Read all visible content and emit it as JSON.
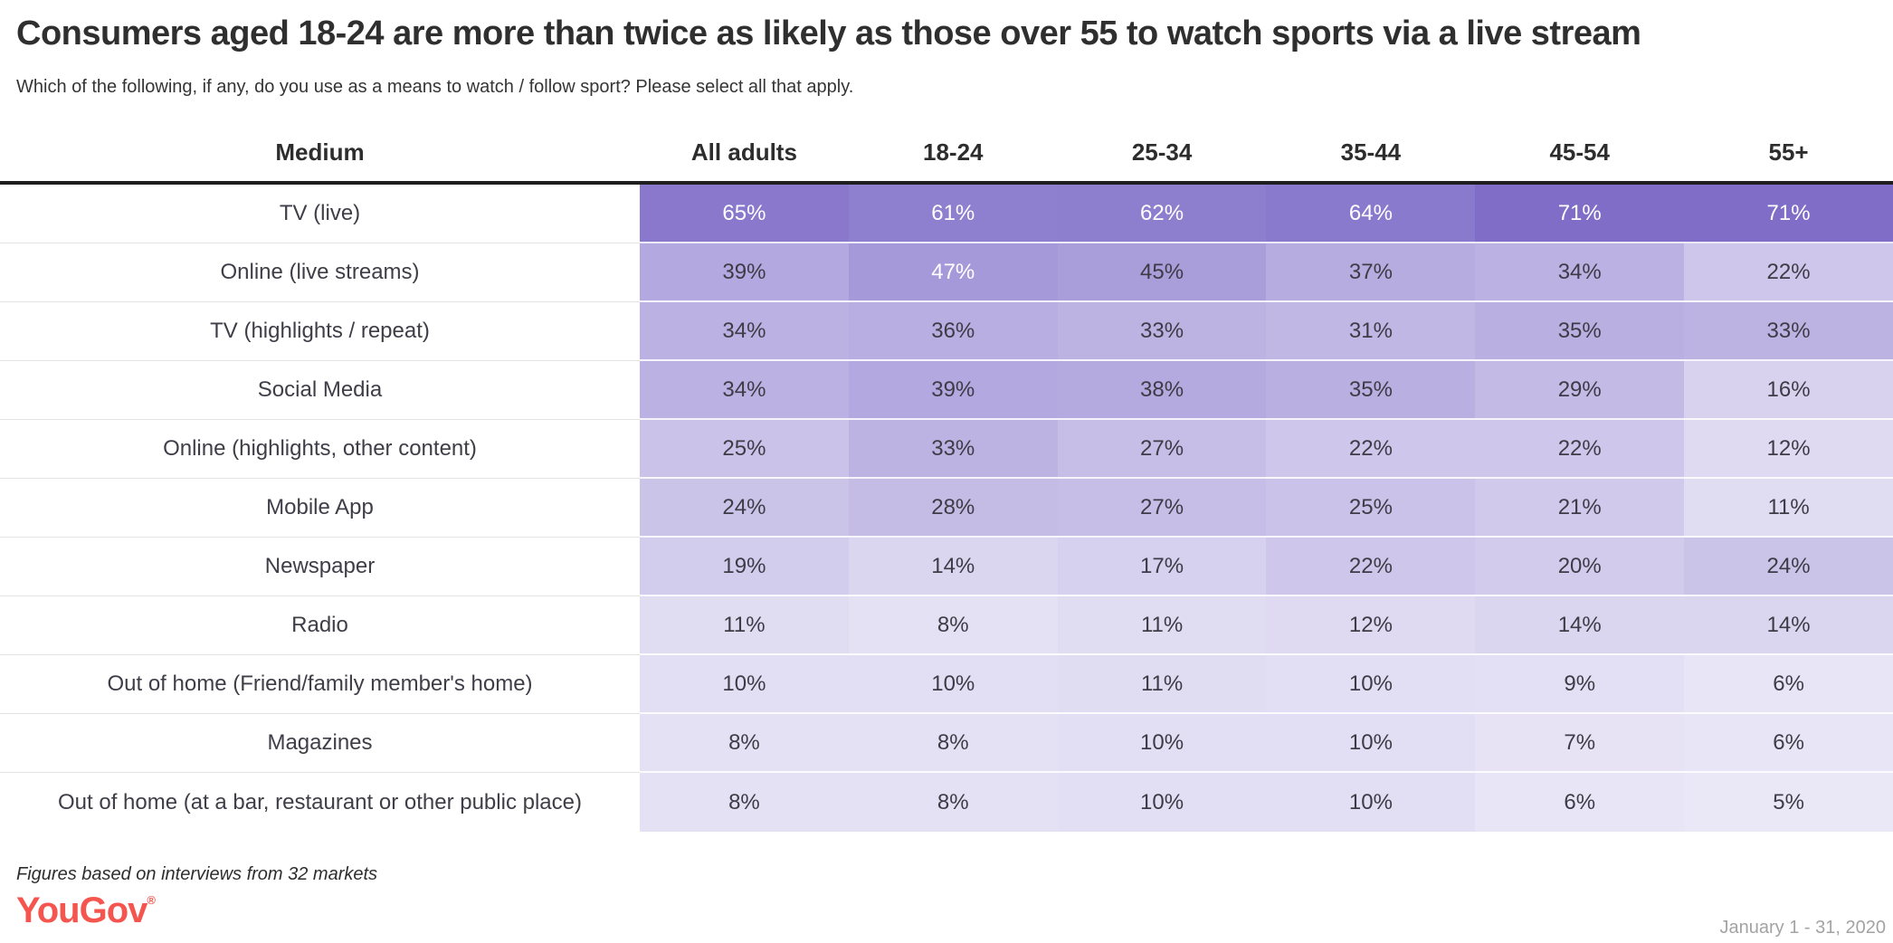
{
  "page": {
    "title": "Consumers aged 18-24 are more than twice as likely as those over 55 to watch sports via a live stream",
    "subtitle": "Which of the following, if any, do you use as a means to watch / follow sport? Please select all that apply."
  },
  "chart_data": {
    "type": "heatmap",
    "title": "Consumers aged 18-24 are more than twice as likely as those over 55 to watch sports via a live stream",
    "question": "Which of the following, if any, do you use as a means to watch / follow sport? Please select all that apply.",
    "row_header_label": "Medium",
    "columns": [
      "All adults",
      "18-24",
      "25-34",
      "35-44",
      "45-54",
      "55+"
    ],
    "rows": [
      {
        "label": "TV (live)",
        "values": [
          65,
          61,
          62,
          64,
          71,
          71
        ]
      },
      {
        "label": "Online (live streams)",
        "values": [
          39,
          47,
          45,
          37,
          34,
          22
        ]
      },
      {
        "label": "TV (highlights / repeat)",
        "values": [
          34,
          36,
          33,
          31,
          35,
          33
        ]
      },
      {
        "label": "Social Media",
        "values": [
          34,
          39,
          38,
          35,
          29,
          16
        ]
      },
      {
        "label": "Online (highlights, other content)",
        "values": [
          25,
          33,
          27,
          22,
          22,
          12
        ]
      },
      {
        "label": "Mobile App",
        "values": [
          24,
          28,
          27,
          25,
          21,
          11
        ]
      },
      {
        "label": "Newspaper",
        "values": [
          19,
          14,
          17,
          22,
          20,
          24
        ]
      },
      {
        "label": "Radio",
        "values": [
          11,
          8,
          11,
          12,
          14,
          14
        ]
      },
      {
        "label": "Out of home (Friend/family member's home)",
        "values": [
          10,
          10,
          11,
          10,
          9,
          6
        ]
      },
      {
        "label": "Magazines",
        "values": [
          8,
          8,
          10,
          10,
          7,
          6
        ]
      },
      {
        "label": "Out of home (at a bar, restaurant or other public place)",
        "values": [
          8,
          8,
          10,
          10,
          6,
          5
        ]
      }
    ],
    "value_unit": "%",
    "color_scale": {
      "min_value": 0,
      "max_value": 71,
      "min_color": "#f2f0fa",
      "max_color": "#7f6dc8"
    },
    "white_text_threshold": 47,
    "legend_position": "none",
    "grid": false
  },
  "footer": {
    "note": "Figures based on interviews from 32 markets",
    "brand": "YouGov",
    "registered_mark": "®",
    "date_range": "January 1 - 31, 2020"
  },
  "colors": {
    "title_text": "#2f2f2f",
    "header_divider": "#1f1f1f",
    "row_divider": "#e3e3e3",
    "brand_red": "#f4564f",
    "date_text": "#a3a3a3",
    "cell_text_dark": "#3d3c46",
    "cell_text_light": "#ffffff"
  }
}
